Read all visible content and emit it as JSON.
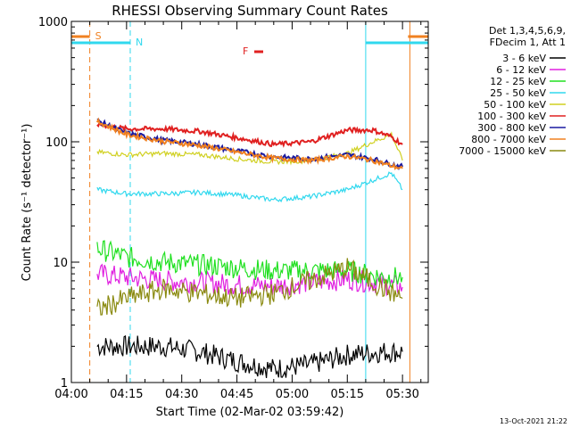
{
  "colors": {
    "background": "#ffffff",
    "axes": "#000000",
    "s_flag": "#f08020",
    "n_flag": "#30d8ee",
    "f_flag": "#e02020"
  },
  "chart_data": {
    "type": "line",
    "title": "RHESSI Observing Summary Count Rates",
    "xlabel": "Start Time (02-Mar-02 03:59:42)",
    "ylabel": "Count Rate (s⁻¹ detector⁻¹)",
    "y_scale": "log",
    "ylim": [
      1,
      1000
    ],
    "xlim": [
      "04:00",
      "05:37"
    ],
    "x_ticks": [
      "04:00",
      "04:15",
      "04:30",
      "04:45",
      "05:00",
      "05:15",
      "05:30"
    ],
    "y_ticks": [
      "1",
      "10",
      "100",
      "1000"
    ],
    "legend_title": [
      "Det 1,3,4,5,6,9,",
      "FDecim 1, Att 1"
    ],
    "legend_position": "outside-right",
    "footer_stamp": "13-Oct-2021 21:22",
    "flags": [
      {
        "label": "S",
        "color": "#f08020",
        "dashed_at": "04:05",
        "solid_at": "05:32"
      },
      {
        "label": "N",
        "color": "#30d8ee",
        "dashed_at": "04:16",
        "solid_at": "05:20"
      },
      {
        "label": "F",
        "color": "#e02020"
      }
    ],
    "series": [
      {
        "name": "3 - 6 keV",
        "color": "#000000",
        "x": [
          "04:07",
          "04:15",
          "04:25",
          "04:35",
          "04:45",
          "04:55",
          "05:05",
          "05:15",
          "05:25",
          "05:30"
        ],
        "values": [
          2,
          2,
          2,
          1.8,
          1.5,
          1.3,
          1.4,
          1.7,
          1.8,
          1.8
        ]
      },
      {
        "name": "6 - 12 keV",
        "color": "#e020e0",
        "x": [
          "04:07",
          "04:15",
          "04:25",
          "04:35",
          "04:45",
          "04:55",
          "05:05",
          "05:15",
          "05:25",
          "05:30"
        ],
        "values": [
          8,
          7.5,
          7,
          6.8,
          6.5,
          6.3,
          6.8,
          7.2,
          6.6,
          6.2
        ]
      },
      {
        "name": "12 - 25 keV",
        "color": "#20e020",
        "x": [
          "04:07",
          "04:15",
          "04:25",
          "04:35",
          "04:45",
          "04:55",
          "05:05",
          "05:15",
          "05:25",
          "05:30"
        ],
        "values": [
          13,
          11,
          10,
          9.5,
          9,
          8.5,
          8.5,
          8.5,
          7.5,
          7.5
        ]
      },
      {
        "name": "25 - 50 keV",
        "color": "#30d8ee",
        "x": [
          "04:07",
          "04:15",
          "04:25",
          "04:35",
          "04:45",
          "04:55",
          "05:05",
          "05:15",
          "05:22",
          "05:27",
          "05:30"
        ],
        "values": [
          40,
          37,
          37,
          38,
          36,
          33,
          35,
          40,
          48,
          55,
          40
        ]
      },
      {
        "name": "50 - 100 keV",
        "color": "#d0d020",
        "x": [
          "04:07",
          "04:15",
          "04:25",
          "04:35",
          "04:45",
          "04:55",
          "05:05",
          "05:15",
          "05:22",
          "05:27",
          "05:30"
        ],
        "values": [
          82,
          78,
          80,
          78,
          72,
          68,
          70,
          80,
          100,
          115,
          70
        ]
      },
      {
        "name": "100 - 300 keV",
        "color": "#e02020",
        "x": [
          "04:07",
          "04:15",
          "04:25",
          "04:35",
          "04:45",
          "04:55",
          "05:05",
          "05:15",
          "05:22",
          "05:27",
          "05:30"
        ],
        "values": [
          140,
          128,
          128,
          122,
          108,
          95,
          100,
          125,
          125,
          110,
          95
        ]
      },
      {
        "name": "300 - 800 keV",
        "color": "#1a1aa0",
        "x": [
          "04:07",
          "04:15",
          "04:25",
          "04:35",
          "04:45",
          "04:55",
          "05:05",
          "05:15",
          "05:22",
          "05:27",
          "05:30"
        ],
        "values": [
          150,
          118,
          103,
          95,
          84,
          75,
          72,
          78,
          72,
          65,
          62
        ]
      },
      {
        "name": "800 - 7000 keV",
        "color": "#f08020",
        "x": [
          "04:07",
          "04:15",
          "04:25",
          "04:35",
          "04:45",
          "04:55",
          "05:05",
          "05:15",
          "05:22",
          "05:27",
          "05:30"
        ],
        "values": [
          148,
          115,
          101,
          93,
          82,
          73,
          70,
          76,
          70,
          63,
          60
        ]
      },
      {
        "name": "7000 - 15000 keV",
        "color": "#8a8a10",
        "x": [
          "04:07",
          "04:15",
          "04:25",
          "04:35",
          "04:45",
          "04:55",
          "05:05",
          "05:15",
          "05:25",
          "05:30"
        ],
        "values": [
          4,
          5,
          6,
          5.5,
          5,
          5.5,
          7,
          9,
          6,
          5
        ]
      }
    ]
  }
}
